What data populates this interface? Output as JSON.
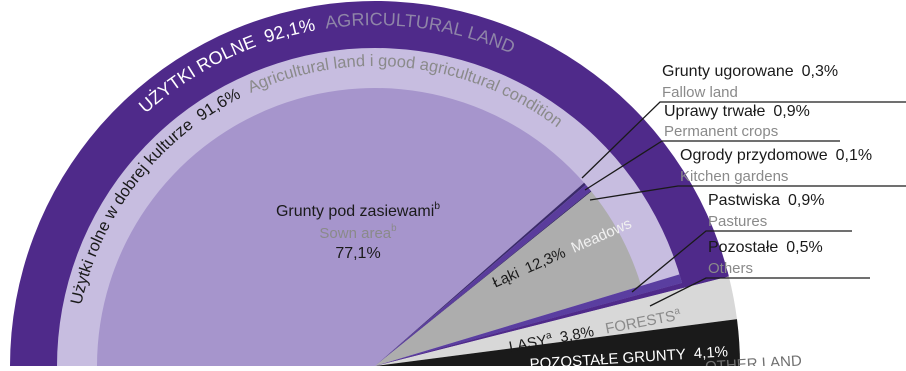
{
  "chart_data": {
    "type": "pie",
    "layout": "semicircle, nested rings",
    "total_shown": 100,
    "outer_ring": {
      "label_pl": "UŻYTKI ROLNE",
      "label_en": "AGRICULTURAL LAND",
      "value": 92.1,
      "value_text": "92,1%",
      "color": "#4f2a8a"
    },
    "middle_ring": {
      "label_pl": "Użytki rolne w dobrej kulturze",
      "label_en": "Agricultural land i good agricultural condition",
      "value": 91.6,
      "value_text": "91,6%",
      "color": "#c7bde0"
    },
    "slices": [
      {
        "key": "sown",
        "label_pl": "Grunty pod zasiewami",
        "sup_pl": "b",
        "label_en": "Sown area",
        "sup_en": "b",
        "value": 77.1,
        "value_text": "77,1%",
        "color": "#a695cc"
      },
      {
        "key": "fallow",
        "label_pl": "Grunty ugorowane",
        "label_en": "Fallow land",
        "value": 0.3,
        "value_text": "0,3%",
        "color": "#3a2a6a"
      },
      {
        "key": "permanent",
        "label_pl": "Uprawy trwałe",
        "label_en": "Permanent crops",
        "value": 0.9,
        "value_text": "0,9%",
        "color": "#5a3c9c"
      },
      {
        "key": "kitchen",
        "label_pl": "Ogrody przydomowe",
        "label_en": "Kitchen gardens",
        "value": 0.1,
        "value_text": "0,1%",
        "color": "#2a1f55"
      },
      {
        "key": "meadows",
        "label_pl": "Łąki",
        "label_en": "Meadows",
        "value": 12.3,
        "value_text": "12,3%",
        "color": "#adadad"
      },
      {
        "key": "pastures",
        "label_pl": "Pastwiska",
        "label_en": "Pastures",
        "value": 0.9,
        "value_text": "0,9%",
        "color": "#5a3ea0"
      },
      {
        "key": "others",
        "label_pl": "Pozostałe",
        "label_en": "Others",
        "value": 0.5,
        "value_text": "0,5%",
        "color": "#4f2a8a"
      },
      {
        "key": "forests",
        "label_pl": "LASY",
        "sup_pl": "a",
        "label_en": "FORESTS",
        "sup_en": "a",
        "value": 3.8,
        "value_text": "3,8%",
        "color": "#d8d8d8"
      },
      {
        "key": "other_land",
        "label_pl": "POZOSTAŁE GRUNTY",
        "label_en": "OTHER LAND",
        "value": 4.1,
        "value_text": "4,1%",
        "color": "#1a1a1a"
      }
    ],
    "colors": {
      "text": "#1a1a1a",
      "english_text": "#8a8a8a",
      "outer_ring_english": "#8f85a8"
    }
  }
}
